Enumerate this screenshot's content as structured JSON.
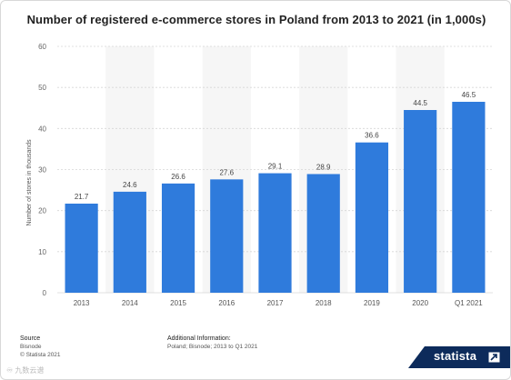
{
  "chart_data": {
    "type": "bar",
    "title": "Number of registered e-commerce stores in Poland from 2013 to 2021 (in 1,000s)",
    "ylabel": "Number of stores in thousands",
    "xlabel": "",
    "categories": [
      "2013",
      "2014",
      "2015",
      "2016",
      "2017",
      "2018",
      "2019",
      "2020",
      "Q1 2021"
    ],
    "values": [
      21.7,
      24.6,
      26.6,
      27.6,
      29.1,
      28.9,
      36.6,
      44.5,
      46.5
    ],
    "value_labels": [
      "21.7",
      "24.6",
      "26.6",
      "27.6",
      "29.1",
      "28.9",
      "36.6",
      "44.5",
      "46.5"
    ],
    "ylim": [
      0,
      60
    ],
    "yticks": [
      "0",
      "10",
      "20",
      "30",
      "40",
      "50",
      "60"
    ],
    "grid": "horizontal",
    "colors": {
      "bar": "#2f7bdc",
      "grid": "#d6d6d6",
      "stripe": "#f6f6f6"
    }
  },
  "footer": {
    "source_heading": "Source",
    "source_lines": [
      "Bisnode",
      "© Statista 2021"
    ],
    "additional_heading": "Additional Information:",
    "additional_text": "Poland; Bisnode; 2013 to Q1 2021"
  },
  "brand": {
    "name": "statista",
    "icon": "statista-arrow-icon"
  },
  "watermark": "♾ 九数云谱"
}
